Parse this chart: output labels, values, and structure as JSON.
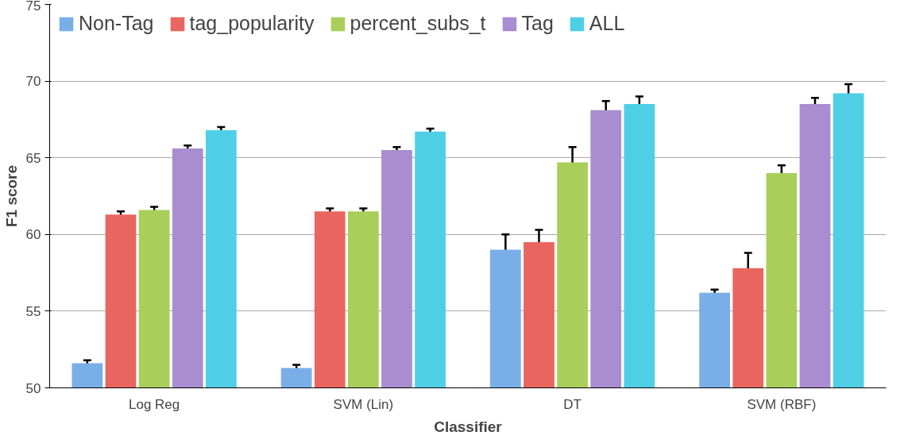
{
  "chart_data": {
    "type": "bar",
    "xlabel": "Classifier",
    "ylabel": "F1 score",
    "categories": [
      "Log Reg",
      "SVM (Lin)",
      "DT",
      "SVM (RBF)"
    ],
    "ylim": [
      50,
      75
    ],
    "yticks": [
      50,
      55,
      60,
      65,
      70,
      75
    ],
    "grid": "y",
    "legend": "top left",
    "series": [
      {
        "name": "Non-Tag",
        "color": "#7aaee8",
        "values": [
          51.6,
          51.3,
          59.0,
          56.2
        ],
        "errors": [
          0.2,
          0.2,
          1.0,
          0.2
        ]
      },
      {
        "name": "tag_popularity",
        "color": "#e8665f",
        "values": [
          61.3,
          61.5,
          59.5,
          57.8
        ],
        "errors": [
          0.2,
          0.2,
          0.8,
          1.0
        ]
      },
      {
        "name": "percent_subs_t",
        "color": "#a9cf5a",
        "values": [
          61.6,
          61.5,
          64.7,
          64.0
        ],
        "errors": [
          0.2,
          0.2,
          1.0,
          0.5
        ]
      },
      {
        "name": "Tag",
        "color": "#a98dd0",
        "values": [
          65.6,
          65.5,
          68.1,
          68.5
        ],
        "errors": [
          0.2,
          0.2,
          0.6,
          0.4
        ]
      },
      {
        "name": "ALL",
        "color": "#4fcfe6",
        "values": [
          66.8,
          66.7,
          68.5,
          69.2
        ],
        "errors": [
          0.2,
          0.2,
          0.5,
          0.6
        ]
      }
    ]
  }
}
